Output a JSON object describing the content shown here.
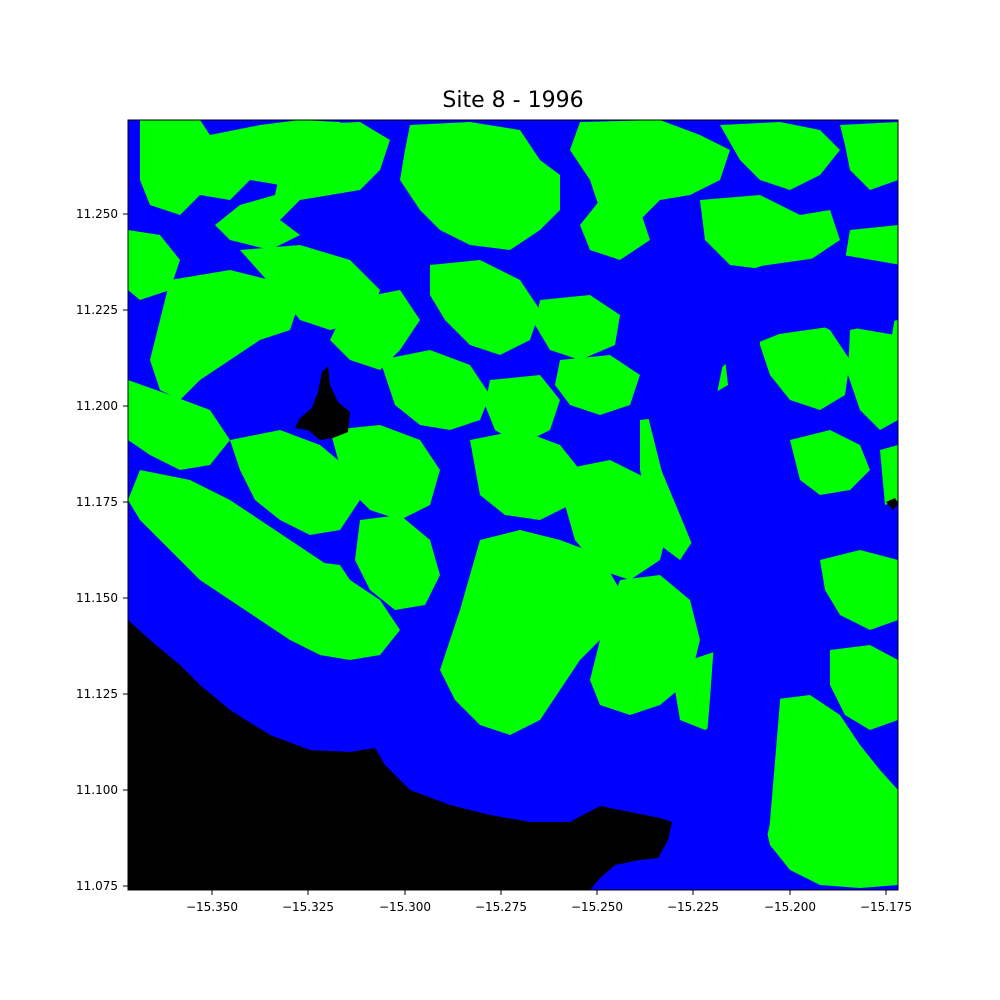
{
  "map": {
    "title": "Site 8 - 1996",
    "colors": {
      "water": "#0000ff",
      "vegetation": "#00ff00",
      "land_mask": "#000000",
      "frame": "#000000"
    },
    "x_axis": {
      "range": [
        -15.372,
        -15.172
      ],
      "ticks": [
        "−15.350",
        "−15.325",
        "−15.300",
        "−15.275",
        "−15.250",
        "−15.225",
        "−15.200",
        "−15.175"
      ]
    },
    "y_axis": {
      "range": [
        11.0745,
        11.275
      ],
      "ticks": [
        "11.250",
        "11.225",
        "11.200",
        "11.175",
        "11.150",
        "11.125",
        "11.100",
        "11.075"
      ]
    }
  }
}
